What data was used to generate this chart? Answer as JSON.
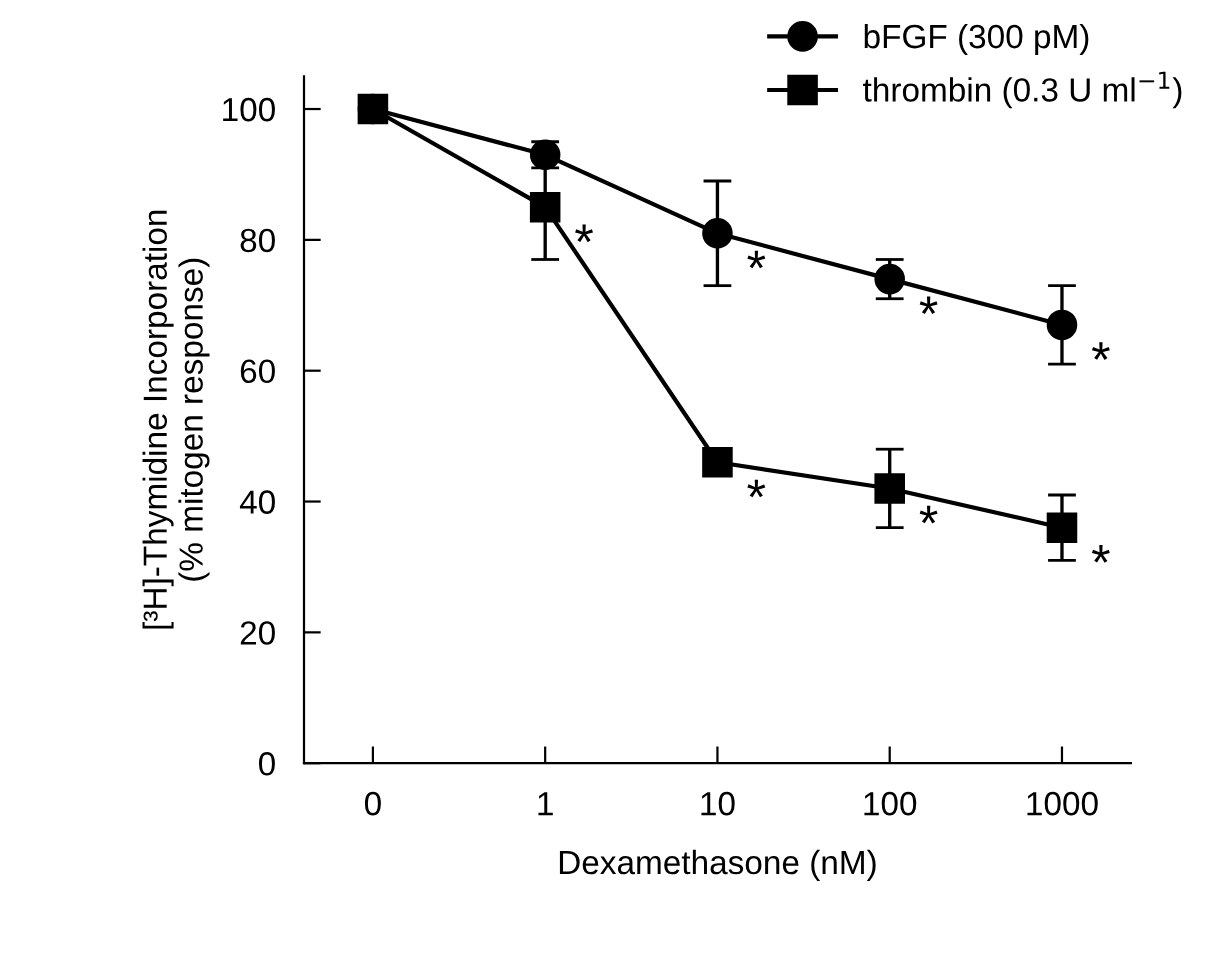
{
  "chart_data": {
    "type": "line",
    "xlabel": "Dexamethasone (nM)",
    "ylabel": "[³H]-Thymidine Incorporation\n(% mitogen response)",
    "categories": [
      "0",
      "1",
      "10",
      "100",
      "1000"
    ],
    "ylim": [
      0,
      105
    ],
    "yticks": [
      0,
      20,
      40,
      60,
      80,
      100
    ],
    "grid": false,
    "legend": "top right",
    "series": [
      {
        "name": "bFGF (300 pM)",
        "color": "#000000",
        "marker": "circle",
        "values": [
          100,
          93,
          81,
          74,
          67
        ],
        "errors": [
          null,
          2,
          8,
          3,
          6
        ]
      },
      {
        "name": "thrombin (0.3 U ml$^{−1}$)",
        "color": "#000000",
        "marker": "square",
        "values": [
          100,
          85,
          46,
          42,
          36
        ],
        "errors": [
          null,
          8,
          2,
          6,
          5
        ]
      }
    ],
    "annotations": [
      {
        "text": "*",
        "x": "10",
        "y": 81
      },
      {
        "text": "*",
        "x": "100",
        "y": 74
      },
      {
        "text": "*",
        "x": "1000",
        "y": 67
      },
      {
        "text": "*",
        "x": "1",
        "y": 85
      },
      {
        "text": "*",
        "x": "10",
        "y": 46
      },
      {
        "text": "*",
        "x": "100",
        "y": 42
      },
      {
        "text": "*",
        "x": "1000",
        "y": 36
      }
    ]
  }
}
